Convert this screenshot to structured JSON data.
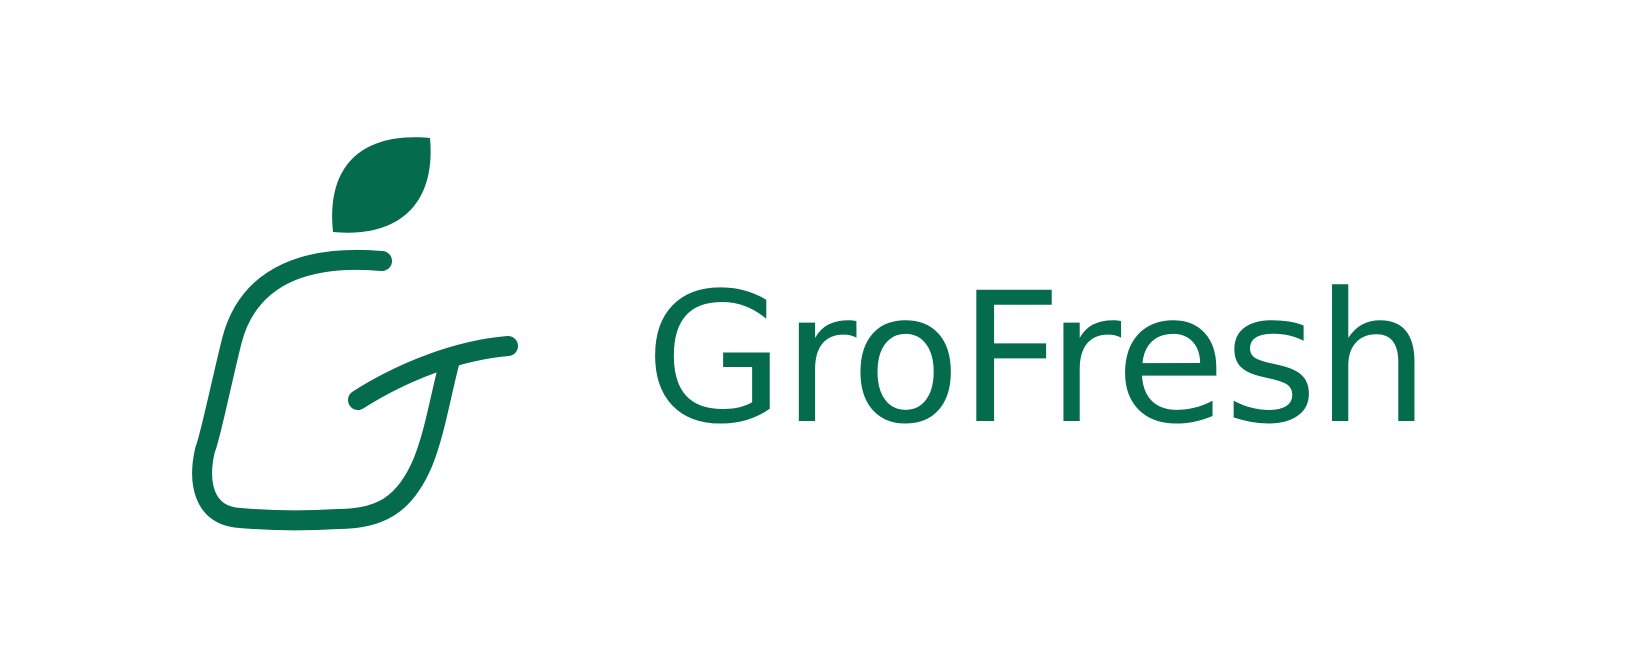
{
  "brand": {
    "name": "GroFresh",
    "color": "#046B4C"
  },
  "icons": {
    "logo_mark": "apple-g-leaf-icon"
  }
}
